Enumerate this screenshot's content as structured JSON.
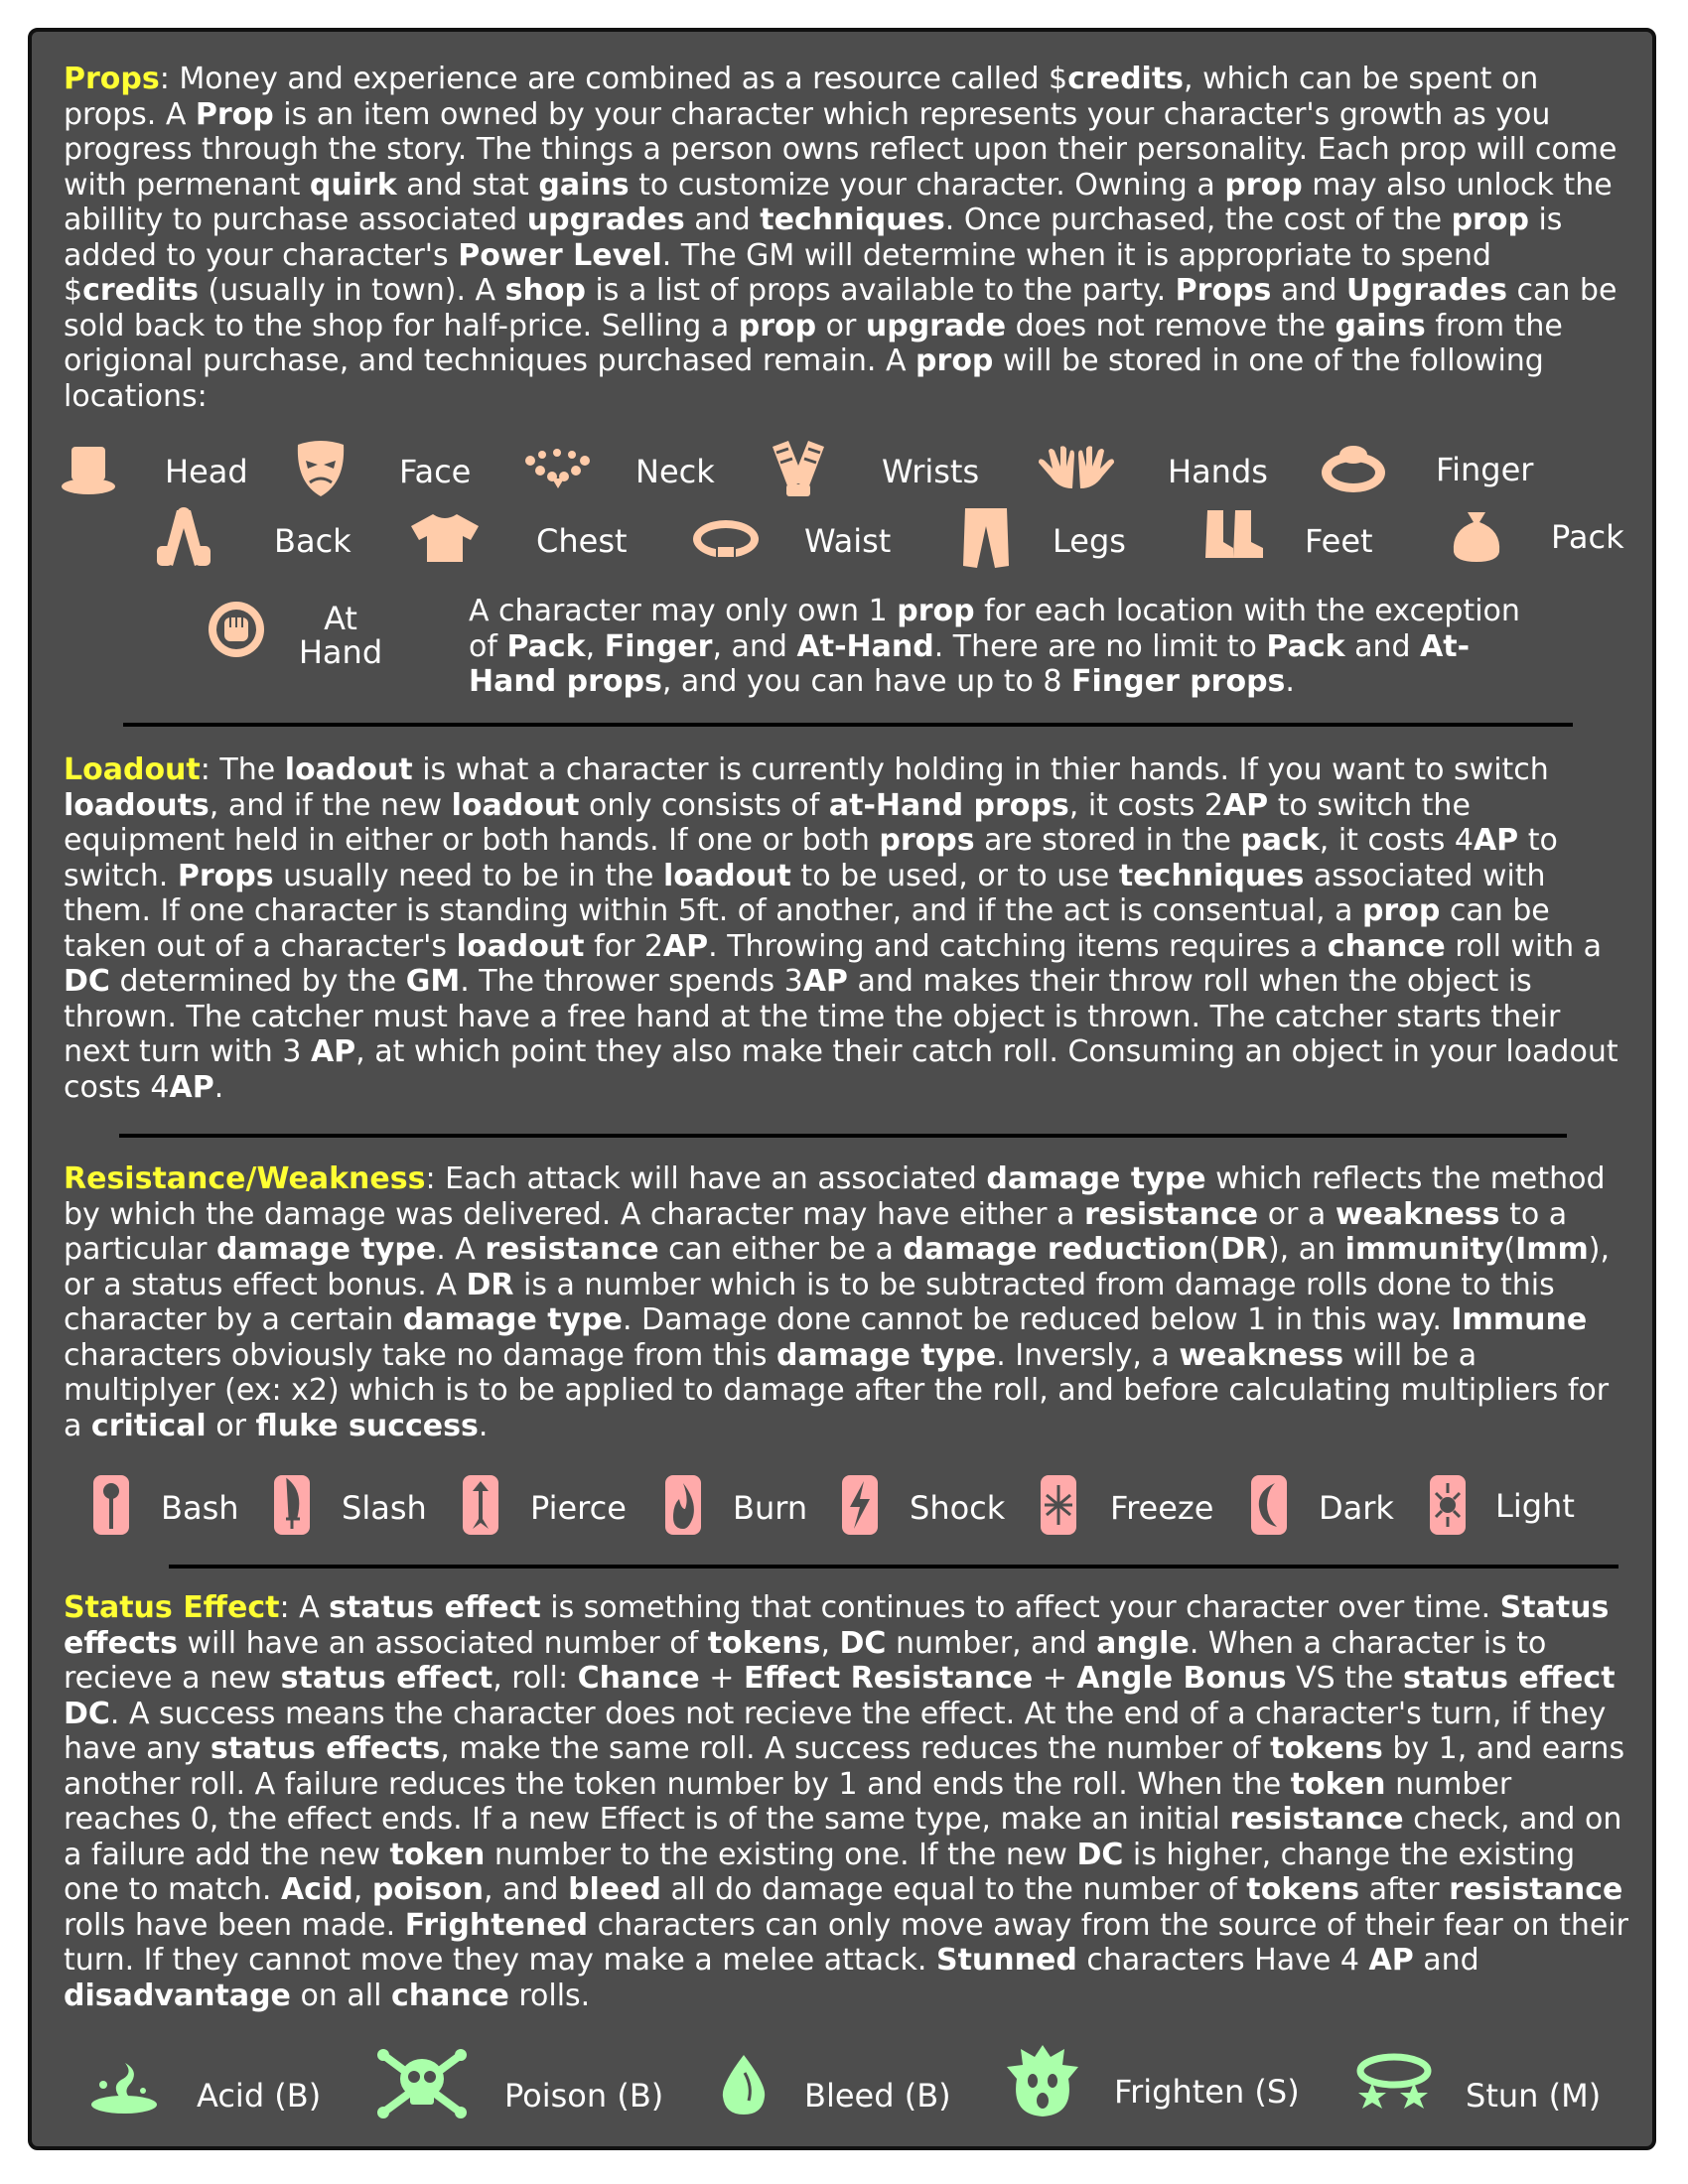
{
  "sections": {
    "props": {
      "heading": "Props",
      "segments": [
        [
          ": Money and experience are combined as a resource called $",
          false
        ],
        [
          "credits",
          true
        ],
        [
          ", which can be spent on props. A ",
          false
        ],
        [
          "Prop",
          true
        ],
        [
          " is an item owned by your character which represents your character's growth as you progress through the story. The things a person owns reflect upon their personality. Each prop will come with permenant ",
          false
        ],
        [
          "quirk",
          true
        ],
        [
          " and stat ",
          false
        ],
        [
          "gains",
          true
        ],
        [
          " to customize your character. Owning a ",
          false
        ],
        [
          "prop",
          true
        ],
        [
          " may also unlock the abillity to purchase associated ",
          false
        ],
        [
          "upgrades",
          true
        ],
        [
          " and ",
          false
        ],
        [
          "techniques",
          true
        ],
        [
          ".  Once purchased, the cost of the ",
          false
        ],
        [
          "prop",
          true
        ],
        [
          " is added to your character's ",
          false
        ],
        [
          "Power Level",
          true
        ],
        [
          ". The GM will determine when it is appropriate to spend $",
          false
        ],
        [
          "credits",
          true
        ],
        [
          " (usually in town). A ",
          false
        ],
        [
          "shop",
          true
        ],
        [
          " is a list of props available to the party. ",
          false
        ],
        [
          "Props",
          true
        ],
        [
          " and ",
          false
        ],
        [
          "Upgrades",
          true
        ],
        [
          " can be sold back to the shop for half-price. Selling a ",
          false
        ],
        [
          "prop",
          true
        ],
        [
          " or ",
          false
        ],
        [
          "upgrade",
          true
        ],
        [
          " does not remove the ",
          false
        ],
        [
          "gains",
          true
        ],
        [
          " from the origional purchase, and techniques purchased remain. A ",
          false
        ],
        [
          "prop",
          true
        ],
        [
          " will be stored in one of the following locations:",
          false
        ]
      ]
    },
    "locations": {
      "row1": [
        "Head",
        "Face",
        "Neck",
        "Wrists",
        "Hands",
        "Finger"
      ],
      "row2": [
        "Back",
        "Chest",
        "Waist",
        "Legs",
        "Feet",
        "Pack"
      ],
      "athand_line1": "At",
      "athand_line2": "Hand",
      "note_segments": [
        [
          "A character may only own 1 ",
          false
        ],
        [
          "prop",
          true
        ],
        [
          " for each location with the exception of ",
          false
        ],
        [
          "Pack",
          true
        ],
        [
          ", ",
          false
        ],
        [
          "Finger",
          true
        ],
        [
          ", and ",
          false
        ],
        [
          "At-Hand",
          true
        ],
        [
          ". There are no limit to ",
          false
        ],
        [
          "Pack",
          true
        ],
        [
          " and ",
          false
        ],
        [
          "At-Hand props",
          true
        ],
        [
          ", and you can have up to 8 ",
          false
        ],
        [
          "Finger props",
          true
        ],
        [
          ".",
          false
        ]
      ],
      "icon_color": "#ffccaa"
    },
    "loadout": {
      "heading": "Loadout",
      "segments": [
        [
          ":  The ",
          false
        ],
        [
          "loadout",
          true
        ],
        [
          " is what a character is currently holding in thier hands. If you want to switch ",
          false
        ],
        [
          "loadouts",
          true
        ],
        [
          ", and if the new ",
          false
        ],
        [
          "loadout",
          true
        ],
        [
          " only consists of ",
          false
        ],
        [
          "at-Hand props",
          true
        ],
        [
          ", it costs 2",
          false
        ],
        [
          "AP",
          true
        ],
        [
          " to switch the equipment held in either or both hands. If one or both ",
          false
        ],
        [
          "props",
          true
        ],
        [
          " are stored in the ",
          false
        ],
        [
          "pack",
          true
        ],
        [
          ", it costs 4",
          false
        ],
        [
          "AP",
          true
        ],
        [
          " to switch. ",
          false
        ],
        [
          "Props",
          true
        ],
        [
          " usually need to be in the ",
          false
        ],
        [
          "loadout",
          true
        ],
        [
          " to be used, or to use ",
          false
        ],
        [
          "techniques",
          true
        ],
        [
          " associated with them. If one character is standing within 5ft. of another, and if the act is consentual, a ",
          false
        ],
        [
          "prop",
          true
        ],
        [
          " can be taken out of a character's ",
          false
        ],
        [
          "loadout",
          true
        ],
        [
          " for 2",
          false
        ],
        [
          "AP",
          true
        ],
        [
          ". Throwing and catching items requires a ",
          false
        ],
        [
          "chance",
          true
        ],
        [
          " roll with a ",
          false
        ],
        [
          "DC",
          true
        ],
        [
          " determined by the ",
          false
        ],
        [
          "GM",
          true
        ],
        [
          ". The thrower spends 3",
          false
        ],
        [
          "AP",
          true
        ],
        [
          " and makes their throw roll when the object is thrown. The catcher must have a free hand at the time the object is thrown. The catcher starts their next turn with 3 ",
          false
        ],
        [
          "AP",
          true
        ],
        [
          ", at which point they also make their catch roll. Consuming an object in your loadout costs 4",
          false
        ],
        [
          "AP",
          true
        ],
        [
          ".",
          false
        ]
      ]
    },
    "resistance": {
      "heading": "Resistance/Weakness",
      "segments": [
        [
          ": Each attack will have an associated ",
          false
        ],
        [
          "damage type",
          true
        ],
        [
          " which reflects the method by which the damage was delivered. A character may have either a ",
          false
        ],
        [
          "resistance",
          true
        ],
        [
          " or a ",
          false
        ],
        [
          "weakness",
          true
        ],
        [
          " to a particular ",
          false
        ],
        [
          "damage type",
          true
        ],
        [
          ". A ",
          false
        ],
        [
          "resistance",
          true
        ],
        [
          " can either be a ",
          false
        ],
        [
          "damage reduction",
          true
        ],
        [
          "(",
          false
        ],
        [
          "DR",
          true
        ],
        [
          "), an ",
          false
        ],
        [
          "immunity",
          true
        ],
        [
          "(",
          false
        ],
        [
          "Imm",
          true
        ],
        [
          "), or a status effect bonus. A ",
          false
        ],
        [
          "DR",
          true
        ],
        [
          " is a number which is to be subtracted from damage rolls done to this character by a certain ",
          false
        ],
        [
          "damage type",
          true
        ],
        [
          ". Damage done cannot be reduced below 1 in this way. ",
          false
        ],
        [
          "Immune",
          true
        ],
        [
          " characters obviously take no damage from this ",
          false
        ],
        [
          "damage type",
          true
        ],
        [
          ". Inversly, a ",
          false
        ],
        [
          "weakness",
          true
        ],
        [
          " will be a multiplyer (ex: x2) which is to be applied to damage after the roll, and before calculating multipliers for a ",
          false
        ],
        [
          "critical",
          true
        ],
        [
          " or ",
          false
        ],
        [
          "fluke success",
          true
        ],
        [
          ".",
          false
        ]
      ],
      "damage_types": [
        "Bash",
        "Slash",
        "Pierce",
        "Burn",
        "Shock",
        "Freeze",
        "Dark",
        "Light"
      ],
      "icon_color": "#ffaaaa"
    },
    "status": {
      "heading": "Status Effect",
      "segments": [
        [
          ": A ",
          false
        ],
        [
          "status effect",
          true
        ],
        [
          " is something that continues to affect your character over time. ",
          false
        ],
        [
          "Status effects",
          true
        ],
        [
          " will have an associated number of ",
          false
        ],
        [
          "tokens",
          true
        ],
        [
          ", ",
          false
        ],
        [
          "DC",
          true
        ],
        [
          " number, and ",
          false
        ],
        [
          "angle",
          true
        ],
        [
          ". When a character is to recieve a new ",
          false
        ],
        [
          "status effect",
          true
        ],
        [
          ", roll: ",
          false
        ],
        [
          "Chance",
          true
        ],
        [
          " + ",
          false
        ],
        [
          "Effect Resistance",
          true
        ],
        [
          " + ",
          false
        ],
        [
          "Angle Bonus",
          true
        ],
        [
          " VS the ",
          false
        ],
        [
          "status effect DC",
          true
        ],
        [
          ". A success means the character does not recieve the effect. At the end of a character's turn, if they have any ",
          false
        ],
        [
          "status effects",
          true
        ],
        [
          ", make the same roll. A success reduces the number of ",
          false
        ],
        [
          "tokens",
          true
        ],
        [
          " by 1, and earns another roll. A failure reduces the token number by 1 and ends the roll. When the ",
          false
        ],
        [
          "token",
          true
        ],
        [
          " number reaches 0, the effect ends. If a new Effect is of the same type, make an initial ",
          false
        ],
        [
          "resistance",
          true
        ],
        [
          " check, and on a failure add the new ",
          false
        ],
        [
          "token",
          true
        ],
        [
          " number to the existing one. If the new ",
          false
        ],
        [
          "DC",
          true
        ],
        [
          " is higher, change the existing one to match. ",
          false
        ],
        [
          "Acid",
          true
        ],
        [
          ", ",
          false
        ],
        [
          "poison",
          true
        ],
        [
          ", and ",
          false
        ],
        [
          "bleed",
          true
        ],
        [
          " all do damage equal to the number of ",
          false
        ],
        [
          "tokens",
          true
        ],
        [
          " after ",
          false
        ],
        [
          "resistance",
          true
        ],
        [
          " rolls have been made. ",
          false
        ],
        [
          "Frightened",
          true
        ],
        [
          " characters can only move away from the source of their fear on their turn. If they cannot move they may make a melee attack. ",
          false
        ],
        [
          "Stunned",
          true
        ],
        [
          " characters Have 4 ",
          false
        ],
        [
          "AP",
          true
        ],
        [
          " and ",
          false
        ],
        [
          "disadvantage",
          true
        ],
        [
          " on all ",
          false
        ],
        [
          "chance",
          true
        ],
        [
          " rolls.",
          false
        ]
      ],
      "effects": [
        "Acid (B)",
        "Poison (B)",
        "Bleed (B)",
        "Frighten (S)",
        "Stun (M)"
      ],
      "icon_color": "#aaffaa"
    }
  }
}
